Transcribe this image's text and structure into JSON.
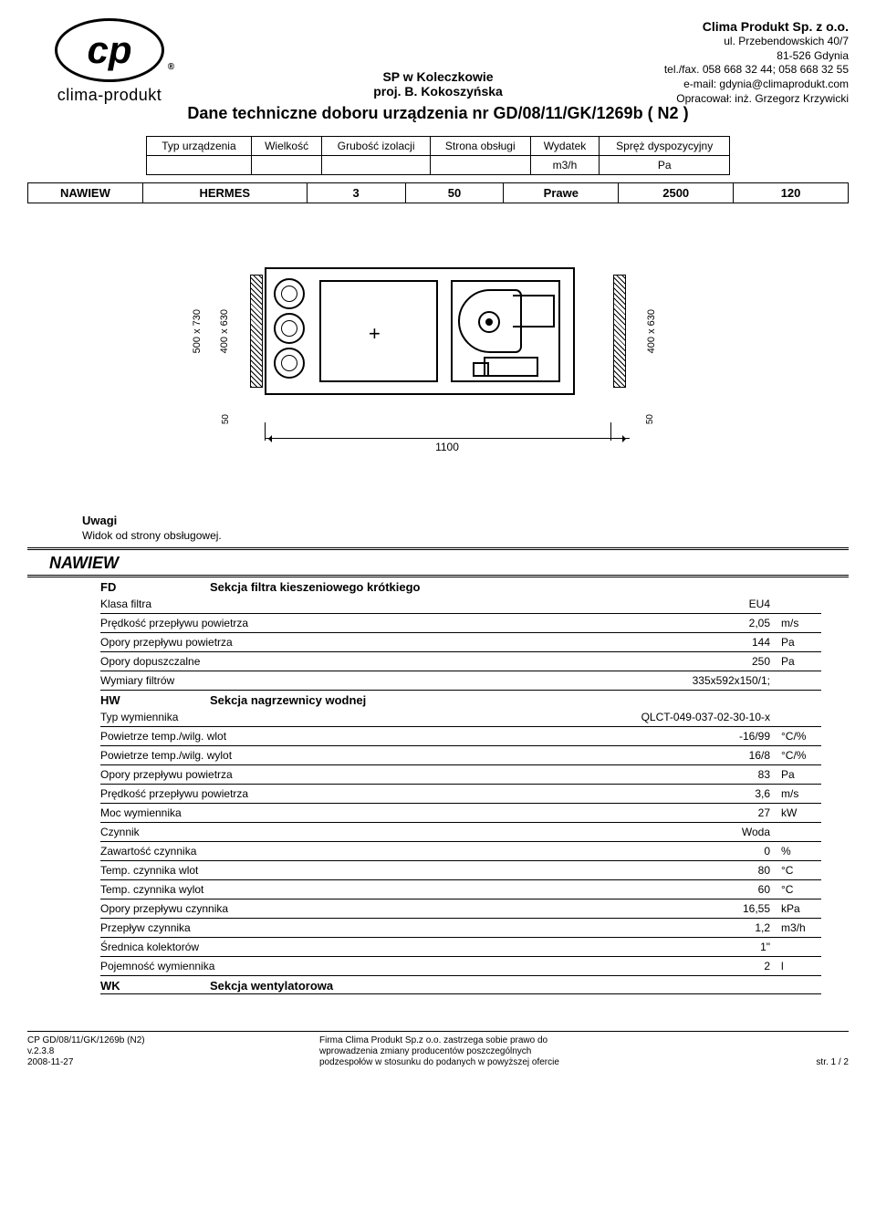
{
  "logo": {
    "initials": "cp",
    "brand": "clima-produkt",
    "reg": "®"
  },
  "company": {
    "name": "Clima Produkt Sp. z o.o.",
    "addr1": "ul. Przebendowskich 40/7",
    "addr2": "81-526 Gdynia",
    "tel": "tel./fax. 058 668 32 44; 058 668 32 55",
    "email": "e-mail: gdynia@climaprodukt.com",
    "author": "Opracował: inż. Grzegorz Krzywicki"
  },
  "center": {
    "l1": "SP w Koleczkowie",
    "l2": "proj. B. Kokoszyńska"
  },
  "title": "Dane techniczne doboru urządzenia nr GD/08/11/GK/1269b ( N2 )",
  "devTable": {
    "headers": [
      "Typ urządzenia",
      "Wielkość",
      "Grubość izolacji",
      "Strona obsługi",
      "Wydatek",
      "Spręż dyspozycyjny"
    ],
    "units": [
      "",
      "",
      "",
      "",
      "m3/h",
      "Pa"
    ]
  },
  "devRow": {
    "c0": "NAWIEW",
    "c1": "HERMES",
    "c2": "3",
    "c3": "50",
    "c4": "Prawe",
    "c5": "2500",
    "c6": "120"
  },
  "drawing": {
    "dim_outer_v": "500 x 730",
    "dim_inner_v": "400 x 630",
    "dim_right_v": "400 x 630",
    "dim_50": "50",
    "dim_bottom": "1100"
  },
  "uwagi": {
    "h": "Uwagi",
    "sub": "Widok od strony obsługowej."
  },
  "sectionTitle": "NAWIEW",
  "sections": [
    {
      "code": "FD",
      "label": "Sekcja filtra kieszeniowego krótkiego",
      "rows": [
        {
          "k": "Klasa filtra",
          "v": "EU4",
          "u": ""
        },
        {
          "k": "Prędkość przepływu powietrza",
          "v": "2,05",
          "u": "m/s"
        },
        {
          "k": "Opory przepływu powietrza",
          "v": "144",
          "u": "Pa"
        },
        {
          "k": "Opory dopuszczalne",
          "v": "250",
          "u": "Pa"
        },
        {
          "k": "Wymiary filtrów",
          "v": "335x592x150/1;",
          "u": ""
        }
      ]
    },
    {
      "code": "HW",
      "label": "Sekcja nagrzewnicy wodnej",
      "rows": [
        {
          "k": "Typ wymiennika",
          "v": "QLCT-049-037-02-30-10-x",
          "u": ""
        },
        {
          "k": "Powietrze temp./wilg. wlot",
          "v": "-16/99",
          "u": "°C/%"
        },
        {
          "k": "Powietrze temp./wilg. wylot",
          "v": "16/8",
          "u": "°C/%"
        },
        {
          "k": "Opory przepływu powietrza",
          "v": "83",
          "u": "Pa"
        },
        {
          "k": "Prędkość przepływu powietrza",
          "v": "3,6",
          "u": "m/s"
        },
        {
          "k": "Moc wymiennika",
          "v": "27",
          "u": "kW"
        },
        {
          "k": "Czynnik",
          "v": "Woda",
          "u": ""
        },
        {
          "k": "Zawartość czynnika",
          "v": "0",
          "u": "%"
        },
        {
          "k": "Temp. czynnika wlot",
          "v": "80",
          "u": "°C"
        },
        {
          "k": "Temp. czynnika wylot",
          "v": "60",
          "u": "°C"
        },
        {
          "k": "Opory przepływu czynnika",
          "v": "16,55",
          "u": "kPa"
        },
        {
          "k": "Przepływ czynnika",
          "v": "1,2",
          "u": "m3/h"
        },
        {
          "k": "Średnica kolektorów",
          "v": "1\"",
          "u": ""
        },
        {
          "k": "Pojemność wymiennika",
          "v": "2",
          "u": "l"
        }
      ]
    },
    {
      "code": "WK",
      "label": "Sekcja wentylatorowa",
      "rows": []
    }
  ],
  "footer": {
    "l1": "CP GD/08/11/GK/1269b (N2)",
    "l2": "v.2.3.8",
    "l3": "2008-11-27",
    "c1": "Firma Clima Produkt Sp.z o.o. zastrzega sobie prawo do",
    "c2": "wprowadzenia zmiany producentów poszczególnych",
    "c3": "podzespołów w stosunku do podanych w powyższej ofercie",
    "r": "str. 1 / 2"
  }
}
